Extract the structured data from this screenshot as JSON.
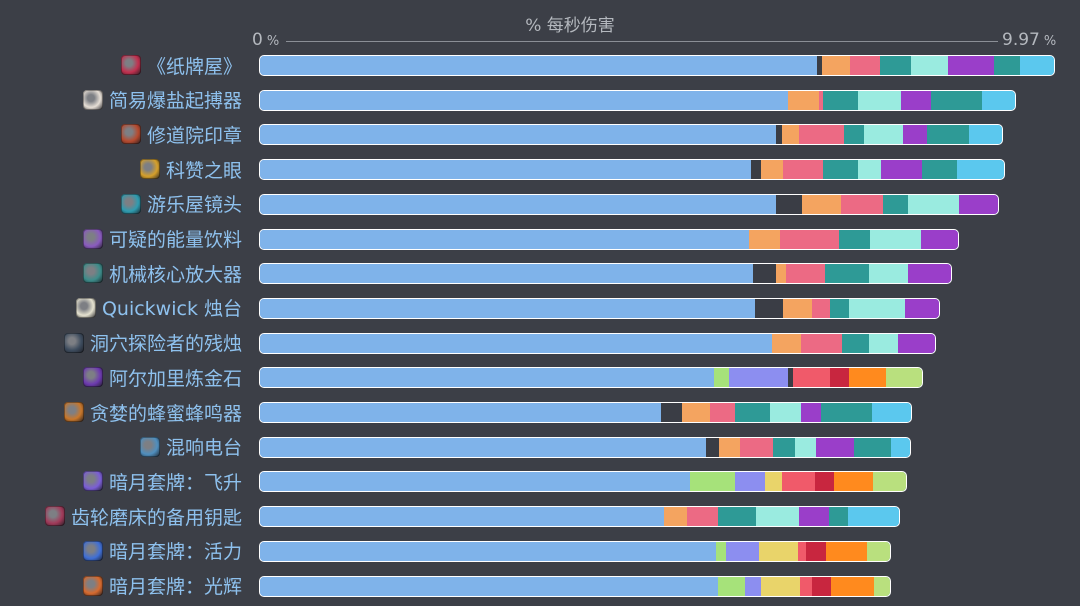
{
  "chart_data": {
    "type": "bar",
    "orientation": "horizontal-stacked",
    "xlabel": "% 每秒伤害",
    "xlim_labels": {
      "min": "0",
      "max": "9.97",
      "unit": "%"
    },
    "xlim": [
      0,
      9.97
    ],
    "categories": [
      "《纸牌屋》",
      "简易爆盐起搏器",
      "修道院印章",
      "科赞之眼",
      "游乐屋镜头",
      "可疑的能量饮料",
      "机械核心放大器",
      "Quickwick 烛台",
      "洞穴探险者的残烛",
      "阿尔加里炼金石",
      "贪婪的蜂蜜蜂鸣器",
      "混响电台",
      "暗月套牌：飞升",
      "齿轮磨床的备用钥匙",
      "暗月套牌：活力",
      "暗月套牌：光辉"
    ],
    "icon_colors": [
      "#c2304f",
      "#e7dfd6",
      "#b74a2e",
      "#d6a02a",
      "#2e9cb0",
      "#8a5bbf",
      "#3c8c8a",
      "#e5e2d0",
      "#3d4c5e",
      "#6d3ab0",
      "#c9772a",
      "#4f8fbf",
      "#7b5ed6",
      "#a23a5a",
      "#3f6fd6",
      "#d86a2e"
    ],
    "segment_colors": [
      "#7fb3ea",
      "#3a3d45",
      "#f4a460",
      "#ec6a84",
      "#2e9a96",
      "#9aebe0",
      "#9a3ec9",
      "#5bc8ee",
      "#a6e27a",
      "#8c8ef0",
      "#e9d46a",
      "#f05a6a",
      "#c8263f",
      "#ff8a1e",
      "#b9e07e"
    ],
    "rows": [
      [
        [
          0,
          7.12
        ],
        [
          1,
          0.07
        ],
        [
          2,
          0.35
        ],
        [
          3,
          0.38
        ],
        [
          4,
          0.4
        ],
        [
          5,
          0.48
        ],
        [
          6,
          0.58
        ],
        [
          4,
          0.33
        ],
        [
          7,
          0.44
        ]
      ],
      [
        [
          0,
          6.75
        ],
        [
          2,
          0.4
        ],
        [
          3,
          0.05
        ],
        [
          4,
          0.45
        ],
        [
          5,
          0.55
        ],
        [
          6,
          0.38
        ],
        [
          4,
          0.65
        ],
        [
          7,
          0.42
        ]
      ],
      [
        [
          0,
          6.6
        ],
        [
          1,
          0.07
        ],
        [
          2,
          0.22
        ],
        [
          3,
          0.58
        ],
        [
          4,
          0.25
        ],
        [
          5,
          0.5
        ],
        [
          6,
          0.3
        ],
        [
          4,
          0.54
        ],
        [
          7,
          0.43
        ]
      ],
      [
        [
          0,
          6.28
        ],
        [
          1,
          0.12
        ],
        [
          2,
          0.28
        ],
        [
          3,
          0.52
        ],
        [
          4,
          0.45
        ],
        [
          5,
          0.29
        ],
        [
          6,
          0.52
        ],
        [
          4,
          0.45
        ],
        [
          7,
          0.6
        ]
      ],
      [
        [
          0,
          6.6
        ],
        [
          1,
          0.33
        ],
        [
          2,
          0.5
        ],
        [
          3,
          0.53
        ],
        [
          4,
          0.32
        ],
        [
          5,
          0.65
        ],
        [
          6,
          0.5
        ]
      ],
      [
        [
          0,
          6.25
        ],
        [
          2,
          0.4
        ],
        [
          3,
          0.75
        ],
        [
          4,
          0.4
        ],
        [
          5,
          0.65
        ],
        [
          6,
          0.47
        ]
      ],
      [
        [
          0,
          6.3
        ],
        [
          1,
          0.3
        ],
        [
          2,
          0.12
        ],
        [
          3,
          0.5
        ],
        [
          4,
          0.56
        ],
        [
          5,
          0.5
        ],
        [
          6,
          0.55
        ]
      ],
      [
        [
          0,
          6.33
        ],
        [
          1,
          0.35
        ],
        [
          2,
          0.37
        ],
        [
          3,
          0.24
        ],
        [
          4,
          0.24
        ],
        [
          5,
          0.72
        ],
        [
          6,
          0.43
        ]
      ],
      [
        [
          0,
          6.55
        ],
        [
          2,
          0.37
        ],
        [
          3,
          0.52
        ],
        [
          4,
          0.34
        ],
        [
          5,
          0.37
        ],
        [
          6,
          0.48
        ]
      ],
      [
        [
          0,
          5.8
        ],
        [
          8,
          0.2
        ],
        [
          9,
          0.75
        ],
        [
          1,
          0.06
        ],
        [
          11,
          0.47
        ],
        [
          12,
          0.25
        ],
        [
          13,
          0.47
        ],
        [
          14,
          0.46
        ]
      ],
      [
        [
          0,
          5.12
        ],
        [
          1,
          0.28
        ],
        [
          2,
          0.35
        ],
        [
          3,
          0.32
        ],
        [
          4,
          0.45
        ],
        [
          5,
          0.4
        ],
        [
          6,
          0.25
        ],
        [
          4,
          0.65
        ],
        [
          7,
          0.5
        ]
      ],
      [
        [
          0,
          5.7
        ],
        [
          1,
          0.17
        ],
        [
          2,
          0.27
        ],
        [
          3,
          0.42
        ],
        [
          4,
          0.28
        ],
        [
          5,
          0.27
        ],
        [
          6,
          0.48
        ],
        [
          4,
          0.47
        ],
        [
          7,
          0.25
        ]
      ],
      [
        [
          0,
          5.5
        ],
        [
          8,
          0.57
        ],
        [
          9,
          0.38
        ],
        [
          10,
          0.22
        ],
        [
          11,
          0.42
        ],
        [
          12,
          0.25
        ],
        [
          13,
          0.5
        ],
        [
          14,
          0.42
        ]
      ],
      [
        [
          0,
          5.16
        ],
        [
          2,
          0.3
        ],
        [
          3,
          0.4
        ],
        [
          4,
          0.48
        ],
        [
          5,
          0.55
        ],
        [
          6,
          0.38
        ],
        [
          4,
          0.25
        ],
        [
          7,
          0.65
        ]
      ],
      [
        [
          0,
          5.83
        ],
        [
          8,
          0.13
        ],
        [
          9,
          0.42
        ],
        [
          10,
          0.5
        ],
        [
          11,
          0.1
        ],
        [
          12,
          0.25
        ],
        [
          13,
          0.53
        ],
        [
          14,
          0.29
        ]
      ],
      [
        [
          0,
          5.85
        ],
        [
          8,
          0.35
        ],
        [
          9,
          0.2
        ],
        [
          10,
          0.5
        ],
        [
          11,
          0.15
        ],
        [
          12,
          0.25
        ],
        [
          13,
          0.55
        ],
        [
          14,
          0.2
        ]
      ]
    ]
  }
}
